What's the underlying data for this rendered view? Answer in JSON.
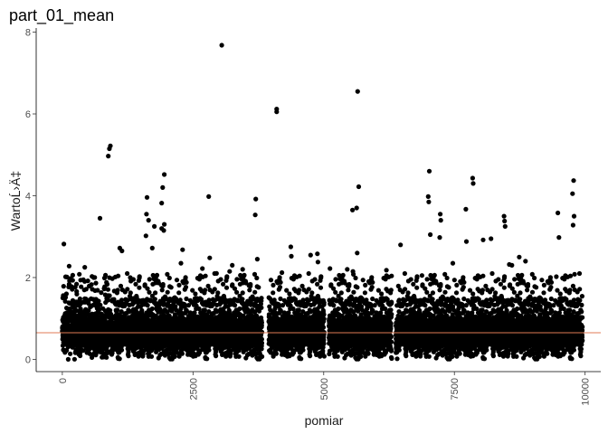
{
  "chart_data": {
    "type": "scatter",
    "title": "part_01_mean",
    "xlabel": "pomiar",
    "ylabel": "WartoĹ›Ä‡",
    "xlim": [
      -500,
      10300
    ],
    "ylim": [
      -0.3,
      8.1
    ],
    "x_ticks": [
      0,
      2500,
      5000,
      7500,
      10000
    ],
    "x_tick_labels": [
      "0",
      "2500",
      "5000",
      "7500",
      "10000"
    ],
    "y_ticks": [
      0,
      2,
      4,
      6,
      8
    ],
    "y_tick_labels": [
      "0",
      "2",
      "4",
      "6",
      "8"
    ],
    "grid": false,
    "n_points": 9950,
    "mean_line": {
      "y": 0.65,
      "color": "#e07b54"
    },
    "point_color": "#000000",
    "bulk_band": {
      "low": 0.2,
      "high": 1.3,
      "typical": 0.65
    },
    "outliers": [
      {
        "x": 3050,
        "y": 7.68
      },
      {
        "x": 5650,
        "y": 6.55
      },
      {
        "x": 4100,
        "y": 6.12
      },
      {
        "x": 4100,
        "y": 6.05
      },
      {
        "x": 920,
        "y": 5.22
      },
      {
        "x": 900,
        "y": 5.15
      },
      {
        "x": 880,
        "y": 4.97
      },
      {
        "x": 7020,
        "y": 4.6
      },
      {
        "x": 1950,
        "y": 4.52
      },
      {
        "x": 7850,
        "y": 4.43
      },
      {
        "x": 9780,
        "y": 4.37
      },
      {
        "x": 7860,
        "y": 4.3
      },
      {
        "x": 1920,
        "y": 4.2
      },
      {
        "x": 5670,
        "y": 4.22
      },
      {
        "x": 9760,
        "y": 4.05
      },
      {
        "x": 2800,
        "y": 3.98
      },
      {
        "x": 1620,
        "y": 3.96
      },
      {
        "x": 7000,
        "y": 3.98
      },
      {
        "x": 3700,
        "y": 3.92
      },
      {
        "x": 7010,
        "y": 3.85
      },
      {
        "x": 1900,
        "y": 3.82
      },
      {
        "x": 5630,
        "y": 3.7
      },
      {
        "x": 7720,
        "y": 3.67
      },
      {
        "x": 5550,
        "y": 3.65
      },
      {
        "x": 9480,
        "y": 3.58
      },
      {
        "x": 1610,
        "y": 3.55
      },
      {
        "x": 3690,
        "y": 3.53
      },
      {
        "x": 7230,
        "y": 3.55
      },
      {
        "x": 8450,
        "y": 3.5
      },
      {
        "x": 9790,
        "y": 3.5
      },
      {
        "x": 8460,
        "y": 3.38
      },
      {
        "x": 1650,
        "y": 3.4
      },
      {
        "x": 720,
        "y": 3.45
      },
      {
        "x": 7240,
        "y": 3.4
      },
      {
        "x": 1950,
        "y": 3.3
      },
      {
        "x": 9770,
        "y": 3.28
      },
      {
        "x": 1760,
        "y": 3.25
      },
      {
        "x": 8470,
        "y": 3.25
      },
      {
        "x": 1900,
        "y": 3.2
      },
      {
        "x": 1940,
        "y": 3.15
      },
      {
        "x": 7040,
        "y": 3.05
      },
      {
        "x": 1600,
        "y": 3.02
      },
      {
        "x": 9500,
        "y": 2.98
      },
      {
        "x": 7220,
        "y": 2.98
      },
      {
        "x": 8200,
        "y": 2.95
      },
      {
        "x": 8050,
        "y": 2.92
      },
      {
        "x": 7730,
        "y": 2.88
      },
      {
        "x": 30,
        "y": 2.82
      },
      {
        "x": 6470,
        "y": 2.8
      },
      {
        "x": 4370,
        "y": 2.75
      },
      {
        "x": 1100,
        "y": 2.72
      },
      {
        "x": 1720,
        "y": 2.72
      },
      {
        "x": 2300,
        "y": 2.68
      },
      {
        "x": 1140,
        "y": 2.65
      },
      {
        "x": 5640,
        "y": 2.6
      },
      {
        "x": 4880,
        "y": 2.58
      },
      {
        "x": 4750,
        "y": 2.55
      },
      {
        "x": 4380,
        "y": 2.52
      },
      {
        "x": 8740,
        "y": 2.5
      },
      {
        "x": 2820,
        "y": 2.48
      },
      {
        "x": 3730,
        "y": 2.45
      },
      {
        "x": 4890,
        "y": 2.38
      },
      {
        "x": 8860,
        "y": 2.4
      },
      {
        "x": 2270,
        "y": 2.35
      },
      {
        "x": 7470,
        "y": 2.35
      },
      {
        "x": 8550,
        "y": 2.32
      },
      {
        "x": 3250,
        "y": 2.3
      },
      {
        "x": 8600,
        "y": 2.3
      },
      {
        "x": 130,
        "y": 2.28
      },
      {
        "x": 430,
        "y": 2.25
      },
      {
        "x": 5120,
        "y": 2.22
      },
      {
        "x": 2680,
        "y": 2.22
      },
      {
        "x": 3450,
        "y": 2.2
      },
      {
        "x": 5450,
        "y": 2.2
      },
      {
        "x": 6200,
        "y": 2.18
      },
      {
        "x": 5560,
        "y": 2.15
      },
      {
        "x": 3200,
        "y": 2.15
      },
      {
        "x": 4200,
        "y": 2.12
      },
      {
        "x": 2950,
        "y": 2.1
      },
      {
        "x": 9800,
        "y": 2.08
      },
      {
        "x": 6880,
        "y": 2.05
      },
      {
        "x": 9450,
        "y": 2.02
      },
      {
        "x": 600,
        "y": 2.0
      },
      {
        "x": 1300,
        "y": 2.0
      }
    ]
  }
}
